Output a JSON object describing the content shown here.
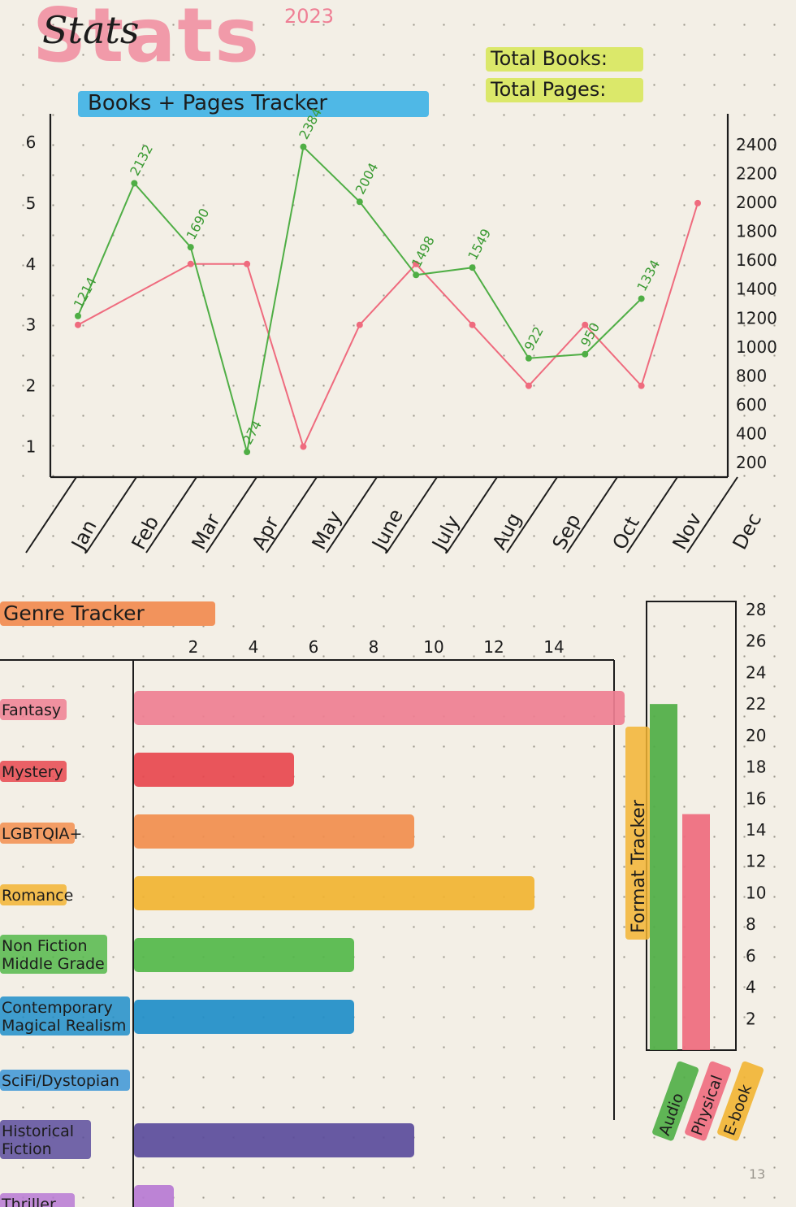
{
  "header": {
    "title": "Stats",
    "year": "2023",
    "total_books_label": "Total Books:",
    "total_pages_label": "Total Pages:",
    "page_number": "13"
  },
  "colors": {
    "books_line": "#ef6b7e",
    "pages_line": "#4fae45",
    "title_pink": "#f19aa9"
  },
  "chart_data": [
    {
      "type": "line",
      "title": "Books + Pages Tracker",
      "categories": [
        "Jan",
        "Feb",
        "Mar",
        "Apr",
        "May",
        "June",
        "July",
        "Aug",
        "Sep",
        "Oct",
        "Nov",
        "Dec"
      ],
      "series": [
        {
          "color": "#ef6b7e",
          "axis": "left",
          "values": [
            3,
            null,
            4,
            4,
            1,
            3,
            4,
            3,
            2,
            3,
            2,
            5
          ]
        },
        {
          "color": "#4fae45",
          "axis": "right",
          "values": [
            1214,
            2132,
            1690,
            274,
            2384,
            2004,
            1498,
            1549,
            922,
            950,
            1334,
            null
          ],
          "data_labels": [
            "1214",
            "2132",
            "1690",
            "274",
            "2384",
            "2004",
            "1498",
            "1549",
            "922",
            "950",
            "1334",
            ""
          ]
        }
      ],
      "y_left_ticks": [
        "1",
        "2",
        "3",
        "4",
        "5",
        "6"
      ],
      "y_left_lim": [
        0.5,
        6.2
      ],
      "y_right_ticks": [
        "200",
        "400",
        "600",
        "800",
        "1000",
        "1200",
        "1400",
        "1600",
        "1800",
        "2000",
        "2200",
        "2400"
      ],
      "y_right_lim": [
        100,
        2500
      ],
      "grid": false
    },
    {
      "type": "bar",
      "orientation": "horizontal",
      "title": "Genre Tracker",
      "categories": [
        "Fantasy",
        "Mystery",
        "LGBTQIA+",
        "Romance",
        "Non Fiction / Middle Grade",
        "Contemporary / Magical Realism",
        "SciFi/Dystopian",
        "Historical Fiction",
        "Thriller"
      ],
      "category_labels": [
        [
          "Fantasy"
        ],
        [
          "Mystery"
        ],
        [
          "LGBTQIA+"
        ],
        [
          "Romance"
        ],
        [
          "Non Fiction",
          "Middle Grade"
        ],
        [
          "Contemporary",
          "Magical Realism"
        ],
        [
          "SciFi/Dystopian"
        ],
        [
          "Historical",
          "Fiction"
        ],
        [
          "Thriller"
        ]
      ],
      "values": [
        16,
        5,
        9,
        13,
        7,
        7,
        0,
        9,
        1
      ],
      "colors": [
        "#ef7f92",
        "#e8484f",
        "#f28e4e",
        "#f2b432",
        "#54b84a",
        "#1f8ec9",
        "#3b95d6",
        "#5b4c9c",
        "#b779d4"
      ],
      "x_ticks": [
        "2",
        "4",
        "6",
        "8",
        "10",
        "12",
        "14"
      ],
      "xlim": [
        0,
        16
      ]
    },
    {
      "type": "bar",
      "title": "Format Tracker",
      "categories": [
        "Audio",
        "Physical",
        "E-book"
      ],
      "values": [
        22,
        15,
        0
      ],
      "colors": [
        "#4fae45",
        "#ef6b7e",
        "#f2b432"
      ],
      "y_ticks": [
        "2",
        "4",
        "6",
        "8",
        "10",
        "12",
        "14",
        "16",
        "18",
        "20",
        "22",
        "24",
        "26",
        "28"
      ],
      "ylim": [
        0,
        28
      ]
    }
  ]
}
